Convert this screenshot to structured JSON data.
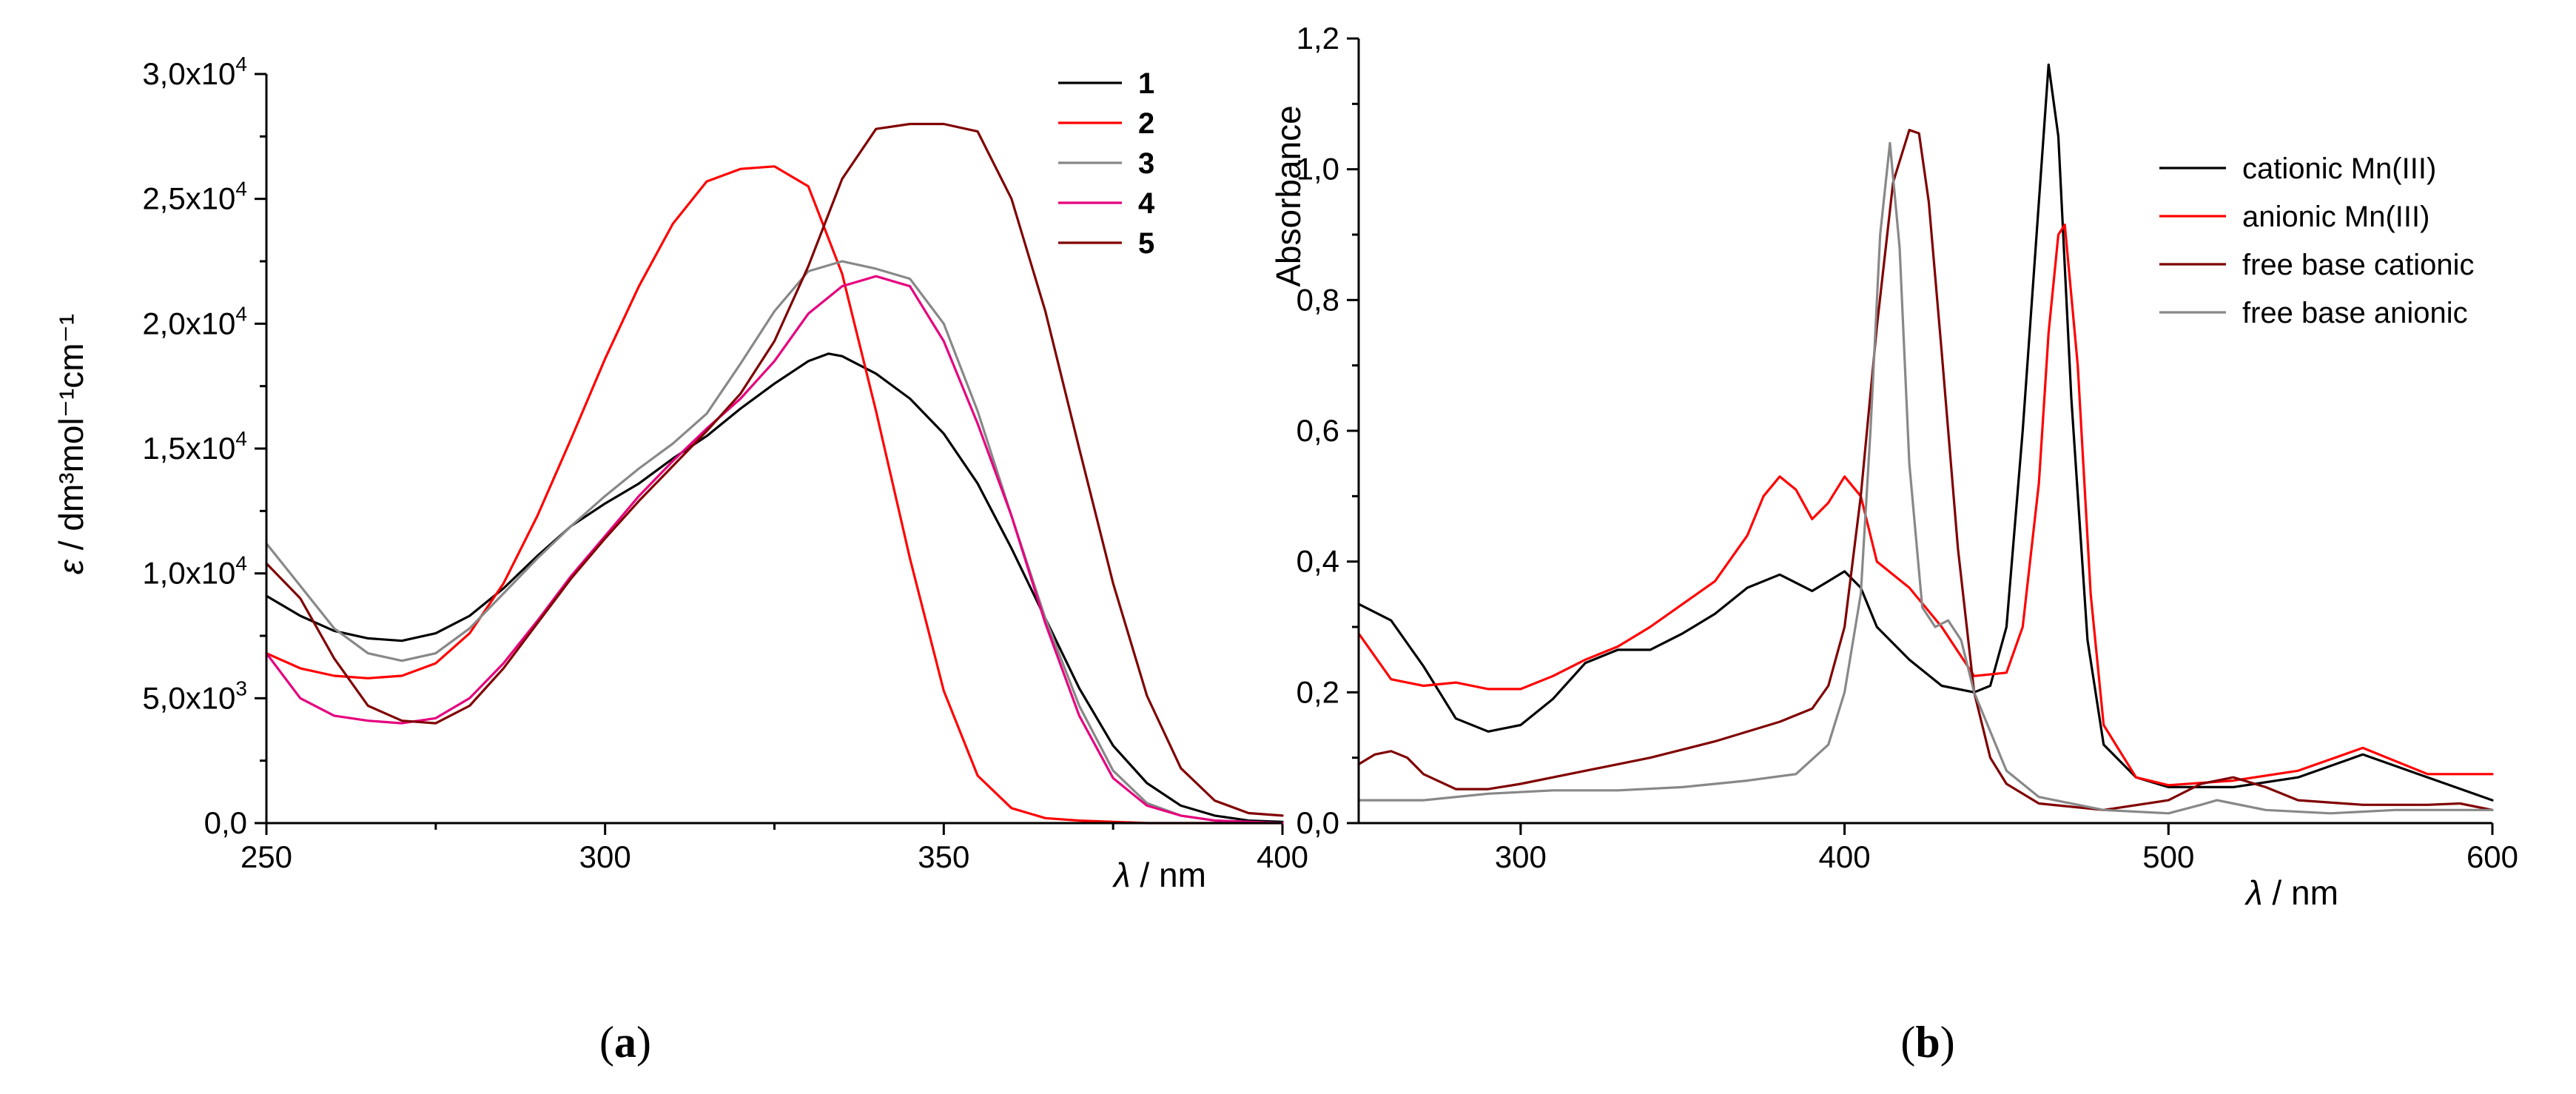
{
  "chart_data": [
    {
      "type": "line",
      "caption": "a",
      "xlabel_var": "λ",
      "xlabel_unit": "/ nm",
      "ylabel_var": "ε",
      "ylabel_unit": "/ dm³mol⁻¹cm⁻¹",
      "xlim": [
        250,
        400
      ],
      "ylim": [
        0,
        30000
      ],
      "xticks": [
        250,
        300,
        350,
        400
      ],
      "xtick_labels": [
        "250",
        "300",
        "350",
        "400"
      ],
      "yticks": [
        0,
        5000,
        10000,
        15000,
        20000,
        25000,
        30000
      ],
      "ytick_labels": [
        {
          "mantissa": "0,0",
          "exponent": ""
        },
        {
          "mantissa": "5,0x10",
          "exponent": "3"
        },
        {
          "mantissa": "1,0x10",
          "exponent": "4"
        },
        {
          "mantissa": "1,5x10",
          "exponent": "4"
        },
        {
          "mantissa": "2,0x10",
          "exponent": "4"
        },
        {
          "mantissa": "2,5x10",
          "exponent": "4"
        },
        {
          "mantissa": "3,0x10",
          "exponent": "4"
        }
      ],
      "legend_position": "top-right",
      "series": [
        {
          "name": "1",
          "color": "#000000",
          "x": [
            250,
            255,
            260,
            265,
            270,
            275,
            280,
            285,
            290,
            295,
            300,
            305,
            310,
            315,
            320,
            325,
            330,
            333,
            335,
            340,
            345,
            350,
            355,
            360,
            365,
            370,
            375,
            380,
            385,
            390,
            395,
            400
          ],
          "y": [
            9100,
            8300,
            7700,
            7400,
            7300,
            7600,
            8300,
            9400,
            10700,
            11900,
            12800,
            13600,
            14600,
            15500,
            16600,
            17600,
            18500,
            18800,
            18700,
            18000,
            17000,
            15600,
            13600,
            11000,
            8200,
            5400,
            3100,
            1600,
            700,
            300,
            100,
            50
          ]
        },
        {
          "name": "2",
          "color": "#ff0000",
          "x": [
            250,
            255,
            260,
            265,
            270,
            275,
            280,
            285,
            290,
            295,
            300,
            305,
            310,
            315,
            320,
            325,
            330,
            335,
            340,
            345,
            350,
            355,
            360,
            365,
            370,
            375,
            380,
            390,
            400
          ],
          "y": [
            6800,
            6200,
            5900,
            5800,
            5900,
            6400,
            7600,
            9600,
            12300,
            15400,
            18600,
            21500,
            24000,
            25700,
            26200,
            26300,
            25500,
            22000,
            16500,
            10600,
            5300,
            1900,
            600,
            200,
            100,
            50,
            0,
            0,
            0
          ]
        },
        {
          "name": "3",
          "color": "#888888",
          "x": [
            250,
            255,
            260,
            265,
            270,
            275,
            280,
            285,
            290,
            295,
            300,
            305,
            310,
            315,
            320,
            325,
            330,
            335,
            340,
            345,
            350,
            355,
            360,
            365,
            370,
            375,
            380,
            385,
            390,
            395,
            400
          ],
          "y": [
            11200,
            9500,
            7800,
            6800,
            6500,
            6800,
            7800,
            9200,
            10600,
            11900,
            13100,
            14200,
            15200,
            16400,
            18400,
            20500,
            22100,
            22500,
            22200,
            21800,
            20000,
            16500,
            12300,
            8200,
            4700,
            2100,
            800,
            300,
            100,
            50,
            0
          ]
        },
        {
          "name": "4",
          "color": "#e6007e",
          "x": [
            250,
            255,
            260,
            265,
            270,
            275,
            280,
            285,
            290,
            295,
            300,
            305,
            310,
            315,
            320,
            325,
            330,
            335,
            340,
            345,
            350,
            355,
            360,
            365,
            370,
            375,
            380,
            385,
            390,
            400
          ],
          "y": [
            6800,
            5000,
            4300,
            4100,
            4000,
            4200,
            5000,
            6400,
            8100,
            9900,
            11500,
            13100,
            14500,
            15800,
            17000,
            18500,
            20400,
            21500,
            21900,
            21500,
            19300,
            16000,
            12300,
            8000,
            4300,
            1800,
            700,
            300,
            100,
            0
          ]
        },
        {
          "name": "5",
          "color": "#800000",
          "x": [
            250,
            255,
            260,
            265,
            270,
            275,
            280,
            285,
            290,
            295,
            300,
            305,
            310,
            315,
            320,
            325,
            330,
            335,
            340,
            345,
            350,
            355,
            360,
            365,
            370,
            375,
            380,
            385,
            390,
            395,
            400
          ],
          "y": [
            10400,
            9000,
            6600,
            4700,
            4100,
            4000,
            4700,
            6200,
            8000,
            9800,
            11400,
            12900,
            14300,
            15700,
            17200,
            19300,
            22300,
            25800,
            27800,
            28000,
            28000,
            27700,
            25000,
            20500,
            15000,
            9600,
            5100,
            2200,
            900,
            400,
            300
          ]
        }
      ]
    },
    {
      "type": "line",
      "caption": "b",
      "xlabel_var": "λ",
      "xlabel_unit": "/ nm",
      "ylabel": "Absorbance",
      "xlim": [
        250,
        600
      ],
      "ylim": [
        0,
        1.2
      ],
      "xticks": [
        300,
        400,
        500,
        600
      ],
      "xtick_labels": [
        "300",
        "400",
        "500",
        "600"
      ],
      "yticks": [
        0,
        0.2,
        0.4,
        0.6,
        0.8,
        1.0,
        1.2
      ],
      "ytick_labels": [
        "0,0",
        "0,2",
        "0,4",
        "0,6",
        "0,8",
        "1,0",
        "1,2"
      ],
      "legend_position": "top-right",
      "series": [
        {
          "name": "cationic Mn(III)",
          "color": "#000000",
          "x": [
            250,
            260,
            270,
            280,
            290,
            300,
            310,
            320,
            330,
            340,
            350,
            360,
            370,
            380,
            390,
            395,
            400,
            405,
            410,
            420,
            430,
            440,
            445,
            450,
            455,
            460,
            463,
            466,
            470,
            475,
            480,
            490,
            500,
            520,
            540,
            560,
            580,
            600
          ],
          "y": [
            0.335,
            0.31,
            0.24,
            0.16,
            0.14,
            0.15,
            0.19,
            0.245,
            0.265,
            0.265,
            0.29,
            0.32,
            0.36,
            0.38,
            0.355,
            0.37,
            0.385,
            0.36,
            0.3,
            0.25,
            0.21,
            0.2,
            0.21,
            0.3,
            0.6,
            0.95,
            1.16,
            1.05,
            0.65,
            0.28,
            0.12,
            0.07,
            0.055,
            0.055,
            0.07,
            0.105,
            0.07,
            0.035
          ]
        },
        {
          "name": "anionic Mn(III)",
          "color": "#ff0000",
          "x": [
            250,
            260,
            270,
            280,
            290,
            300,
            310,
            320,
            330,
            340,
            350,
            360,
            370,
            375,
            380,
            385,
            390,
            395,
            400,
            405,
            410,
            420,
            430,
            440,
            450,
            455,
            460,
            463,
            466,
            468,
            472,
            476,
            480,
            490,
            500,
            520,
            540,
            560,
            580,
            600
          ],
          "y": [
            0.29,
            0.22,
            0.21,
            0.215,
            0.205,
            0.205,
            0.225,
            0.25,
            0.27,
            0.3,
            0.335,
            0.37,
            0.44,
            0.5,
            0.53,
            0.51,
            0.465,
            0.49,
            0.53,
            0.5,
            0.4,
            0.36,
            0.3,
            0.225,
            0.23,
            0.3,
            0.52,
            0.75,
            0.9,
            0.915,
            0.7,
            0.35,
            0.15,
            0.07,
            0.058,
            0.065,
            0.08,
            0.115,
            0.075,
            0.075
          ]
        },
        {
          "name": "free base cationic",
          "color": "#800000",
          "x": [
            250,
            255,
            260,
            265,
            270,
            280,
            290,
            300,
            320,
            340,
            360,
            380,
            390,
            395,
            400,
            405,
            410,
            415,
            420,
            423,
            426,
            430,
            435,
            440,
            445,
            450,
            460,
            480,
            500,
            510,
            520,
            530,
            540,
            560,
            580,
            590,
            600
          ],
          "y": [
            0.09,
            0.105,
            0.11,
            0.1,
            0.075,
            0.052,
            0.052,
            0.06,
            0.08,
            0.1,
            0.125,
            0.155,
            0.175,
            0.21,
            0.3,
            0.5,
            0.76,
            0.98,
            1.06,
            1.055,
            0.95,
            0.72,
            0.42,
            0.2,
            0.1,
            0.06,
            0.03,
            0.02,
            0.035,
            0.06,
            0.07,
            0.055,
            0.035,
            0.028,
            0.028,
            0.03,
            0.02
          ]
        },
        {
          "name": "free base anionic",
          "color": "#888888",
          "x": [
            250,
            270,
            290,
            310,
            330,
            350,
            370,
            385,
            395,
            400,
            405,
            408,
            411,
            414,
            417,
            420,
            424,
            428,
            432,
            436,
            440,
            450,
            460,
            480,
            500,
            510,
            515,
            520,
            530,
            550,
            570,
            600
          ],
          "y": [
            0.035,
            0.035,
            0.045,
            0.05,
            0.05,
            0.055,
            0.065,
            0.075,
            0.12,
            0.2,
            0.35,
            0.6,
            0.9,
            1.04,
            0.88,
            0.55,
            0.33,
            0.3,
            0.31,
            0.28,
            0.2,
            0.08,
            0.04,
            0.02,
            0.015,
            0.028,
            0.035,
            0.03,
            0.02,
            0.015,
            0.02,
            0.02
          ]
        }
      ]
    }
  ]
}
